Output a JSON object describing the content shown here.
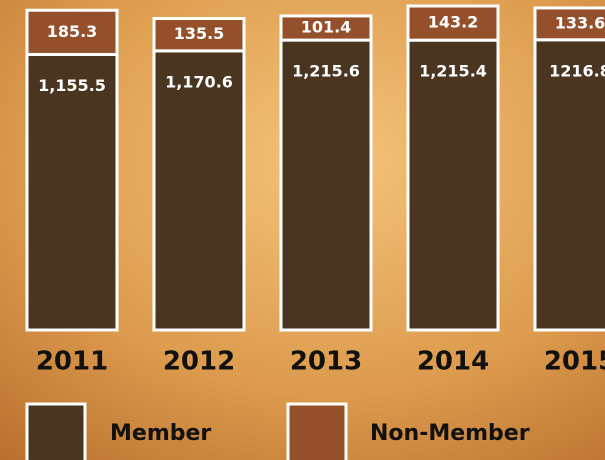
{
  "chart_data": {
    "type": "stacked_bar",
    "categories": [
      "2011",
      "2012",
      "2013",
      "2014",
      "2015"
    ],
    "series": [
      {
        "name": "Member",
        "color": "#4a3520",
        "values": [
          1155.5,
          1170.6,
          1215.6,
          1215.4,
          1216.8
        ],
        "value_labels": [
          "1,155.5",
          "1,170.6",
          "1,215.6",
          "1,215.4",
          "1216.8"
        ]
      },
      {
        "name": "Non-Member",
        "color": "#93502a",
        "values": [
          185.3,
          135.5,
          101.4,
          143.2,
          133.6
        ],
        "value_labels": [
          "185.3",
          "135.5",
          "101.4",
          "143.2",
          "133.6"
        ]
      }
    ]
  }
}
